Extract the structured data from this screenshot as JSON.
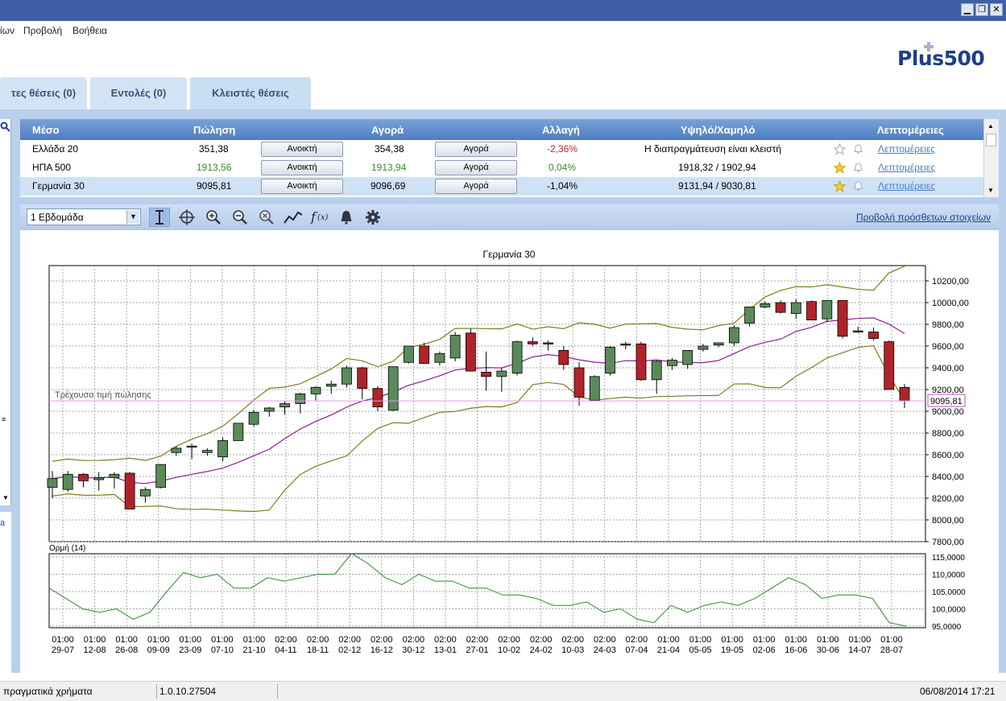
{
  "menu": [
    "ίων",
    "Προβολή",
    "Βοήθεια"
  ],
  "brand": "Plus500",
  "tabs": [
    "τες θέσεις (0)",
    "Εντολές (0)",
    "Κλειστές θέσεις"
  ],
  "table": {
    "headers": [
      "Μέσο",
      "Πώληση",
      "Αγορά",
      "Αλλαγή",
      "Υψηλό/Χαμηλό",
      "Λεπτομέρειες"
    ],
    "rows": [
      {
        "name": "Ελλάδα 20",
        "sell": "351,38",
        "sell_btn": "Ανοικτή",
        "buy": "354,38",
        "buy_btn": "Αγορά",
        "change": "-2,36%",
        "highlow": "Η διαπραγμάτευση είναι κλειστή",
        "details": "Λεπτομέρειες"
      },
      {
        "name": "ΗΠΑ 500",
        "sell": "1913,56",
        "sell_btn": "Ανοικτή",
        "buy": "1913,94",
        "buy_btn": "Αγορά",
        "change": "0,04%",
        "highlow": "1918,32 / 1902,94",
        "details": "Λεπτομέρειες"
      },
      {
        "name": "Γερμανία 30",
        "sell": "9095,81",
        "sell_btn": "Ανοικτή",
        "buy": "9096,69",
        "buy_btn": "Αγορά",
        "change": "-1,04%",
        "highlow": "9131,94 / 9030,81",
        "details": "Λεπτομέρειες"
      }
    ],
    "colors": {
      "down": "#c0272d",
      "up": "#3a8a2e",
      "selected": "#cfe2f5"
    }
  },
  "toolbar": {
    "period": "1 Εβδομάδα",
    "more_link": "Προβολή πρόσθετων στοιχείων",
    "icons": [
      "scale-icon",
      "crosshair-icon",
      "zoom-in-icon",
      "zoom-out-icon",
      "zoom-reset-icon",
      "line-chart-icon",
      "function-icon",
      "bell-icon",
      "gear-icon"
    ]
  },
  "status": {
    "mode": "πραγματικά χρήματα",
    "version": "1.0.10.27504",
    "datetime": "06/08/2014 17:21"
  },
  "chart_data": {
    "type": "candlestick",
    "title": "Γερμανία 30",
    "current_price_label": "Τρέχουσα τιμή πώλησης",
    "current_price": 9095.81,
    "current_price_text": "9095,81",
    "ylim": [
      7800,
      10300
    ],
    "yticks": [
      "10200,00",
      "10000,00",
      "9800,00",
      "9600,00",
      "9400,00",
      "9200,00",
      "9000,00",
      "8800,00",
      "8600,00",
      "8400,00",
      "8200,00",
      "8000,00",
      "7800,00"
    ],
    "ytick_values": [
      10200,
      10000,
      9800,
      9600,
      9400,
      9200,
      9000,
      8800,
      8600,
      8400,
      8200,
      8000,
      7800
    ],
    "xticks_time": [
      "01:00",
      "01:00",
      "01:00",
      "01:00",
      "01:00",
      "01:00",
      "01:00",
      "02:00",
      "02:00",
      "02:00",
      "02:00",
      "02:00",
      "02:00",
      "02:00",
      "02:00",
      "02:00",
      "02:00",
      "02:00",
      "02:00",
      "01:00",
      "01:00",
      "01:00",
      "01:00",
      "01:00",
      "01:00",
      "01:00",
      "01:00"
    ],
    "xticks_date": [
      "29-07",
      "12-08",
      "26-08",
      "09-09",
      "23-09",
      "07-10",
      "21-10",
      "04-11",
      "18-11",
      "02-12",
      "16-12",
      "30-12",
      "13-01",
      "27-01",
      "10-02",
      "24-02",
      "10-03",
      "24-03",
      "07-04",
      "21-04",
      "05-05",
      "19-05",
      "02-06",
      "16-06",
      "30-06",
      "14-07",
      "28-07"
    ],
    "candles": [
      {
        "o": 8300,
        "h": 8450,
        "l": 8200,
        "c": 8380
      },
      {
        "o": 8280,
        "h": 8450,
        "l": 8260,
        "c": 8420
      },
      {
        "o": 8420,
        "h": 8430,
        "l": 8300,
        "c": 8360
      },
      {
        "o": 8370,
        "h": 8440,
        "l": 8270,
        "c": 8390
      },
      {
        "o": 8390,
        "h": 8440,
        "l": 8290,
        "c": 8420
      },
      {
        "o": 8430,
        "h": 8440,
        "l": 8100,
        "c": 8100
      },
      {
        "o": 8220,
        "h": 8300,
        "l": 8160,
        "c": 8280
      },
      {
        "o": 8300,
        "h": 8510,
        "l": 8290,
        "c": 8510
      },
      {
        "o": 8620,
        "h": 8680,
        "l": 8590,
        "c": 8660
      },
      {
        "o": 8680,
        "h": 8700,
        "l": 8560,
        "c": 8680
      },
      {
        "o": 8620,
        "h": 8660,
        "l": 8590,
        "c": 8640
      },
      {
        "o": 8580,
        "h": 8760,
        "l": 8540,
        "c": 8730
      },
      {
        "o": 8730,
        "h": 8890,
        "l": 8730,
        "c": 8890
      },
      {
        "o": 8880,
        "h": 9010,
        "l": 8860,
        "c": 8990
      },
      {
        "o": 9000,
        "h": 9040,
        "l": 8950,
        "c": 9030
      },
      {
        "o": 9040,
        "h": 9090,
        "l": 8970,
        "c": 9070
      },
      {
        "o": 9070,
        "h": 9170,
        "l": 8980,
        "c": 9160
      },
      {
        "o": 9160,
        "h": 9230,
        "l": 9100,
        "c": 9220
      },
      {
        "o": 9230,
        "h": 9280,
        "l": 9160,
        "c": 9250
      },
      {
        "o": 9250,
        "h": 9420,
        "l": 9220,
        "c": 9400
      },
      {
        "o": 9400,
        "h": 9410,
        "l": 9110,
        "c": 9210
      },
      {
        "o": 9210,
        "h": 9230,
        "l": 9000,
        "c": 9040
      },
      {
        "o": 9010,
        "h": 9410,
        "l": 9000,
        "c": 9410
      },
      {
        "o": 9450,
        "h": 9600,
        "l": 9440,
        "c": 9600
      },
      {
        "o": 9600,
        "h": 9630,
        "l": 9440,
        "c": 9440
      },
      {
        "o": 9450,
        "h": 9550,
        "l": 9420,
        "c": 9530
      },
      {
        "o": 9490,
        "h": 9730,
        "l": 9460,
        "c": 9700
      },
      {
        "o": 9720,
        "h": 9760,
        "l": 9370,
        "c": 9370
      },
      {
        "o": 9360,
        "h": 9550,
        "l": 9190,
        "c": 9320
      },
      {
        "o": 9320,
        "h": 9400,
        "l": 9180,
        "c": 9370
      },
      {
        "o": 9350,
        "h": 9650,
        "l": 9330,
        "c": 9640
      },
      {
        "o": 9640,
        "h": 9680,
        "l": 9600,
        "c": 9620
      },
      {
        "o": 9630,
        "h": 9650,
        "l": 9560,
        "c": 9620
      },
      {
        "o": 9560,
        "h": 9600,
        "l": 9380,
        "c": 9430
      },
      {
        "o": 9400,
        "h": 9450,
        "l": 9050,
        "c": 9130
      },
      {
        "o": 9100,
        "h": 9330,
        "l": 9100,
        "c": 9320
      },
      {
        "o": 9350,
        "h": 9600,
        "l": 9330,
        "c": 9590
      },
      {
        "o": 9620,
        "h": 9640,
        "l": 9570,
        "c": 9620
      },
      {
        "o": 9620,
        "h": 9640,
        "l": 9280,
        "c": 9290
      },
      {
        "o": 9290,
        "h": 9470,
        "l": 9160,
        "c": 9460
      },
      {
        "o": 9420,
        "h": 9490,
        "l": 9380,
        "c": 9470
      },
      {
        "o": 9430,
        "h": 9560,
        "l": 9390,
        "c": 9560
      },
      {
        "o": 9570,
        "h": 9620,
        "l": 9550,
        "c": 9600
      },
      {
        "o": 9610,
        "h": 9630,
        "l": 9590,
        "c": 9630
      },
      {
        "o": 9630,
        "h": 9790,
        "l": 9600,
        "c": 9770
      },
      {
        "o": 9810,
        "h": 9960,
        "l": 9780,
        "c": 9960
      },
      {
        "o": 9960,
        "h": 10010,
        "l": 9950,
        "c": 9990
      },
      {
        "o": 10000,
        "h": 10020,
        "l": 9900,
        "c": 9910
      },
      {
        "o": 9900,
        "h": 10030,
        "l": 9850,
        "c": 10000
      },
      {
        "o": 10010,
        "h": 10020,
        "l": 9840,
        "c": 9840
      },
      {
        "o": 9850,
        "h": 10020,
        "l": 9820,
        "c": 10020
      },
      {
        "o": 10020,
        "h": 10020,
        "l": 9670,
        "c": 9690
      },
      {
        "o": 9730,
        "h": 9780,
        "l": 9720,
        "c": 9740
      },
      {
        "o": 9730,
        "h": 9770,
        "l": 9650,
        "c": 9670
      },
      {
        "o": 9640,
        "h": 9650,
        "l": 9200,
        "c": 9200
      },
      {
        "o": 9220,
        "h": 9250,
        "l": 9030,
        "c": 9095.81
      }
    ],
    "indicator": {
      "label": "Ορμή (14)",
      "ylim": [
        95,
        116
      ],
      "yticks": [
        "115,0000",
        "110,0000",
        "105,0000",
        "100,0000",
        "95,0000"
      ],
      "ytick_values": [
        115,
        110,
        105,
        100,
        95
      ],
      "values": [
        106,
        103,
        100,
        99,
        100,
        97,
        99,
        105,
        110.5,
        109,
        110,
        106,
        106,
        109,
        108,
        109,
        110,
        110,
        116,
        113,
        109,
        107,
        110,
        108,
        108,
        106,
        106,
        104,
        104,
        103,
        101,
        101,
        102,
        99,
        100,
        97,
        96,
        101,
        99,
        101,
        102,
        101,
        103,
        106,
        109,
        107,
        103,
        104,
        104,
        103,
        96,
        95
      ]
    },
    "series_colors": {
      "up": "#5a8a5a",
      "down": "#b0232a",
      "mid": "#8b1e8f",
      "band": "#7d7d1a",
      "momentum": "#2e8b2e",
      "price_line": "#e39ce0"
    }
  }
}
